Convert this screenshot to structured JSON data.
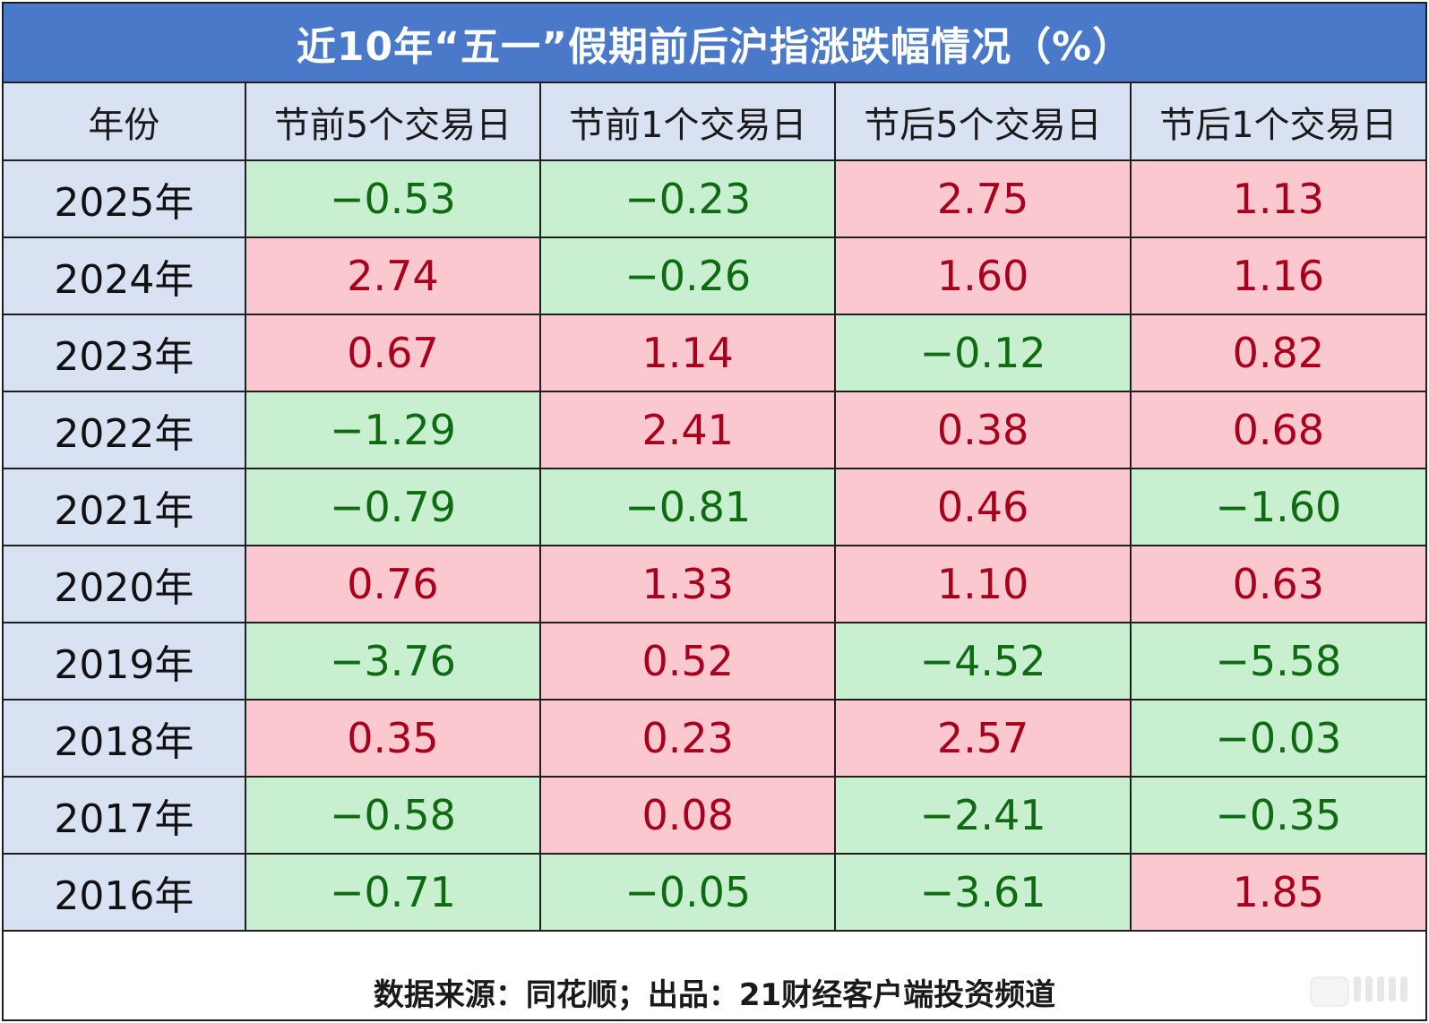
{
  "title": "近10年“五一”假期前后沪指涨跌幅情况（%）",
  "headers": [
    "年份",
    "节前5个交易日",
    "节前1个交易日",
    "节后5个交易日",
    "节后1个交易日"
  ],
  "rows": [
    {
      "year": "2025年",
      "values": [
        "−0.53",
        "−0.23",
        "2.75",
        "1.13"
      ],
      "signs": [
        "down",
        "down",
        "up",
        "up"
      ]
    },
    {
      "year": "2024年",
      "values": [
        "2.74",
        "−0.26",
        "1.60",
        "1.16"
      ],
      "signs": [
        "up",
        "down",
        "up",
        "up"
      ]
    },
    {
      "year": "2023年",
      "values": [
        "0.67",
        "1.14",
        "−0.12",
        "0.82"
      ],
      "signs": [
        "up",
        "up",
        "down",
        "up"
      ]
    },
    {
      "year": "2022年",
      "values": [
        "−1.29",
        "2.41",
        "0.38",
        "0.68"
      ],
      "signs": [
        "down",
        "up",
        "up",
        "up"
      ]
    },
    {
      "year": "2021年",
      "values": [
        "−0.79",
        "−0.81",
        "0.46",
        "−1.60"
      ],
      "signs": [
        "down",
        "down",
        "up",
        "down"
      ]
    },
    {
      "year": "2020年",
      "values": [
        "0.76",
        "1.33",
        "1.10",
        "0.63"
      ],
      "signs": [
        "up",
        "up",
        "up",
        "up"
      ]
    },
    {
      "year": "2019年",
      "values": [
        "−3.76",
        "0.52",
        "−4.52",
        "−5.58"
      ],
      "signs": [
        "down",
        "up",
        "down",
        "down"
      ]
    },
    {
      "year": "2018年",
      "values": [
        "0.35",
        "0.23",
        "2.57",
        "−0.03"
      ],
      "signs": [
        "up",
        "up",
        "up",
        "down"
      ]
    },
    {
      "year": "2017年",
      "values": [
        "−0.58",
        "0.08",
        "−2.41",
        "−0.35"
      ],
      "signs": [
        "down",
        "up",
        "down",
        "down"
      ]
    },
    {
      "year": "2016年",
      "values": [
        "−0.71",
        "−0.05",
        "−3.61",
        "1.85"
      ],
      "signs": [
        "down",
        "down",
        "down",
        "up"
      ]
    }
  ],
  "footer": "数据来源：同花顺；出品：21财经客户端投资频道",
  "colors": {
    "title_bg": "#4a79c9",
    "header_bg": "#d9e2f3",
    "up_bg": "#fcc8d0",
    "up_text": "#a8001c",
    "down_bg": "#c8efd0",
    "down_text": "#0f6b12"
  }
}
